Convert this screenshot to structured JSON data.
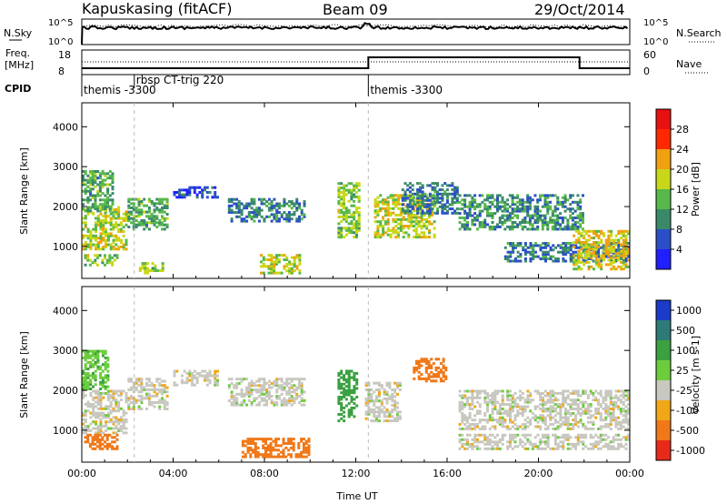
{
  "header": {
    "station": "Kapuskasing (fitACF)",
    "beam": "Beam 09",
    "date": "29/Oct/2014"
  },
  "top_panels": {
    "nsky_label": "N.Sky",
    "nsky_ticks": [
      "10^5",
      "10^0"
    ],
    "nsearch_label": "N.Search",
    "freq_label_1": "Freq.",
    "freq_label_2": "[MHz]",
    "freq_ticks": [
      "18",
      "8"
    ],
    "nave_label": "Nave",
    "nave_ticks": [
      "60",
      "0"
    ],
    "cpid_label": "CPID",
    "cpid_segments": [
      {
        "label": "themis -3300",
        "start_hour": 0.0
      },
      {
        "label": "rbsp CT-trig 220",
        "start_hour": 2.3
      },
      {
        "label": "themis -3300",
        "start_hour": 12.55
      }
    ]
  },
  "time_axis": {
    "label": "Time UT",
    "ticks": [
      "00:00",
      "04:00",
      "08:00",
      "12:00",
      "16:00",
      "20:00",
      "00:00"
    ],
    "range_hours": [
      0,
      24
    ]
  },
  "chart_data": [
    {
      "type": "heatmap",
      "name": "power",
      "ylabel": "Slant Range [km]",
      "yticks": [
        "1000",
        "2000",
        "3000",
        "4000"
      ],
      "ylim": [
        200,
        4600
      ],
      "colorbar_label": "Power [dB]",
      "colorbar_ticks": [
        "4",
        "8",
        "12",
        "16",
        "20",
        "24",
        "28"
      ],
      "colorbar_colors": [
        "#1f1fff",
        "#2a4fc8",
        "#3a8a6a",
        "#58b84a",
        "#c8d818",
        "#f0a010",
        "#ff2800"
      ],
      "colorbar_range": [
        0,
        32
      ],
      "echo_regions": [
        {
          "t": [
            0.0,
            2.0
          ],
          "r": [
            900,
            2000
          ],
          "level": 20
        },
        {
          "t": [
            0.0,
            1.4
          ],
          "r": [
            1800,
            2900
          ],
          "level": 14
        },
        {
          "t": [
            0.1,
            1.6
          ],
          "r": [
            500,
            800
          ],
          "level": 18
        },
        {
          "t": [
            2.0,
            3.8
          ],
          "r": [
            1400,
            2200
          ],
          "level": 14
        },
        {
          "t": [
            2.5,
            3.6
          ],
          "r": [
            300,
            600
          ],
          "level": 18
        },
        {
          "t": [
            4.0,
            6.0
          ],
          "r": [
            2200,
            2500
          ],
          "level": 6
        },
        {
          "t": [
            6.4,
            9.8
          ],
          "r": [
            1600,
            2200
          ],
          "level": 10
        },
        {
          "t": [
            7.8,
            9.6
          ],
          "r": [
            300,
            800
          ],
          "level": 20
        },
        {
          "t": [
            11.2,
            12.2
          ],
          "r": [
            1200,
            2600
          ],
          "level": 18
        },
        {
          "t": [
            12.8,
            15.5
          ],
          "r": [
            1200,
            2300
          ],
          "level": 20
        },
        {
          "t": [
            14.0,
            16.5
          ],
          "r": [
            1800,
            2600
          ],
          "level": 10
        },
        {
          "t": [
            16.5,
            22.0
          ],
          "r": [
            1400,
            2300
          ],
          "level": 12
        },
        {
          "t": [
            18.5,
            24.0
          ],
          "r": [
            600,
            1100
          ],
          "level": 10
        },
        {
          "t": [
            21.5,
            24.0
          ],
          "r": [
            400,
            1400
          ],
          "level": 22
        }
      ]
    },
    {
      "type": "heatmap",
      "name": "velocity",
      "ylabel": "Slant Range [km]",
      "yticks": [
        "1000",
        "2000",
        "3000",
        "4000"
      ],
      "ylim": [
        200,
        4600
      ],
      "colorbar_label": "Velocity [m s-1]",
      "colorbar_ticks": [
        "1000",
        "500",
        "100",
        "25",
        "-25",
        "-100",
        "-500",
        "-1000"
      ],
      "colorbar_colors": [
        "#1a3cc8",
        "#2e7a78",
        "#3aa040",
        "#6ccc3c",
        "#c8c8c0",
        "#f0a818",
        "#f07818",
        "#e82a1a"
      ],
      "echo_regions": [
        {
          "t": [
            0.0,
            2.0
          ],
          "r": [
            900,
            2000
          ],
          "level": 0
        },
        {
          "t": [
            0.0,
            1.2
          ],
          "r": [
            2000,
            3000
          ],
          "level": 80
        },
        {
          "t": [
            0.1,
            1.6
          ],
          "r": [
            500,
            900
          ],
          "level": -200
        },
        {
          "t": [
            2.0,
            3.8
          ],
          "r": [
            1500,
            2300
          ],
          "level": 0
        },
        {
          "t": [
            4.0,
            6.0
          ],
          "r": [
            2100,
            2500
          ],
          "level": 0
        },
        {
          "t": [
            6.4,
            9.8
          ],
          "r": [
            1600,
            2300
          ],
          "level": 0
        },
        {
          "t": [
            7.0,
            10.0
          ],
          "r": [
            300,
            800
          ],
          "level": -150
        },
        {
          "t": [
            11.2,
            12.1
          ],
          "r": [
            1200,
            2500
          ],
          "level": 150
        },
        {
          "t": [
            12.4,
            14.0
          ],
          "r": [
            1200,
            2200
          ],
          "level": 0
        },
        {
          "t": [
            14.5,
            16.0
          ],
          "r": [
            2200,
            2800
          ],
          "level": -400
        },
        {
          "t": [
            16.5,
            24.0
          ],
          "r": [
            1000,
            2000
          ],
          "level": 0
        },
        {
          "t": [
            16.5,
            24.0
          ],
          "r": [
            500,
            900
          ],
          "level": 0
        }
      ]
    }
  ]
}
